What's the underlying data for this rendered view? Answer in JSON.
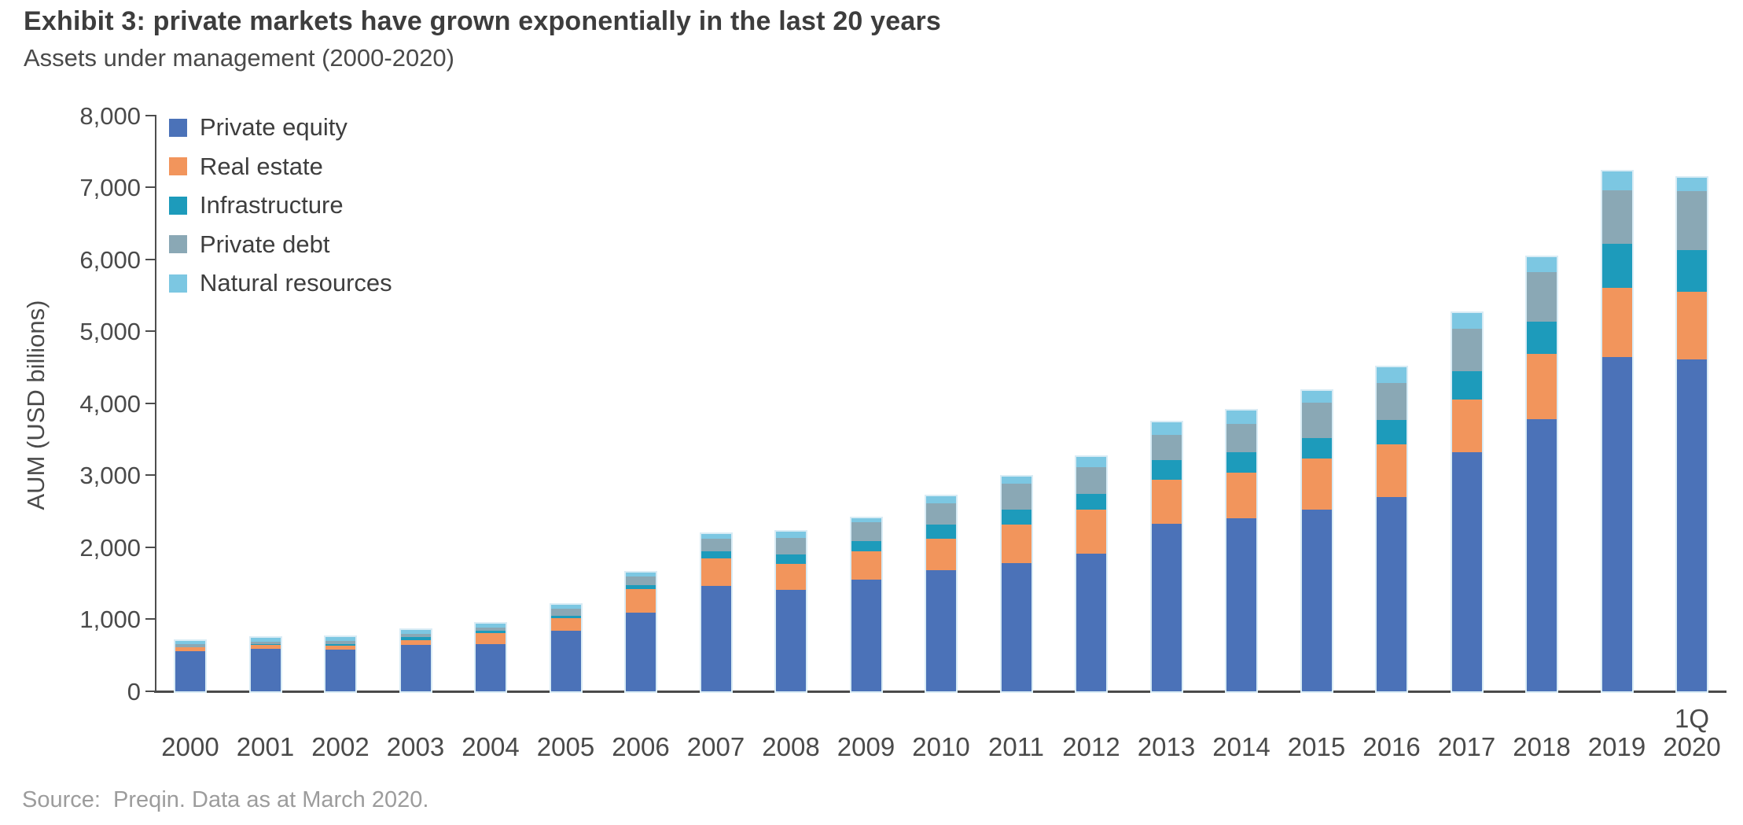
{
  "title": "Exhibit 3: private markets have grown exponentially in the last 20 years",
  "subtitle": "Assets under management (2000-2020)",
  "source": "Source:  Preqin. Data as at March 2020.",
  "chart_data": {
    "type": "bar",
    "stacked": true,
    "title": "Exhibit 3: private markets have grown exponentially in the last 20 years",
    "subtitle": "Assets under management (2000-2020)",
    "xlabel": "",
    "ylabel": "AUM (USD billions)",
    "ylim": [
      0,
      8000
    ],
    "ytick_interval": 1000,
    "ytick_labels": [
      "0",
      "1,000",
      "2,000",
      "3,000",
      "4,000",
      "5,000",
      "6,000",
      "7,000",
      "8,000"
    ],
    "grid": false,
    "legend_position": "top-left",
    "categories": [
      "2000",
      "2001",
      "2002",
      "2003",
      "2004",
      "2005",
      "2006",
      "2007",
      "2008",
      "2009",
      "2010",
      "2011",
      "2012",
      "2013",
      "2014",
      "2015",
      "2016",
      "2017",
      "2018",
      "2019",
      "1Q 2020"
    ],
    "series": [
      {
        "name": "Private equity",
        "color": "#4b72b8",
        "values": [
          565,
          590,
          585,
          645,
          655,
          840,
          1095,
          1460,
          1410,
          1550,
          1690,
          1775,
          1910,
          2330,
          2400,
          2520,
          2700,
          3320,
          3780,
          4640,
          4610
        ]
      },
      {
        "name": "Real estate",
        "color": "#f2955c",
        "values": [
          45,
          55,
          55,
          62,
          160,
          175,
          330,
          390,
          356,
          390,
          434,
          538,
          612,
          610,
          635,
          715,
          730,
          730,
          900,
          965,
          940
        ]
      },
      {
        "name": "Infrastructure",
        "color": "#1d9bbb",
        "values": [
          10,
          11,
          18,
          40,
          34,
          40,
          55,
          90,
          134,
          145,
          193,
          207,
          218,
          270,
          280,
          280,
          330,
          400,
          450,
          605,
          580
        ]
      },
      {
        "name": "Private debt",
        "color": "#8aa8b5",
        "values": [
          38,
          40,
          45,
          45,
          45,
          90,
          117,
          178,
          226,
          264,
          298,
          360,
          371,
          355,
          400,
          495,
          515,
          585,
          690,
          740,
          825
        ]
      },
      {
        "name": "Natural resources",
        "color": "#7cc7e2",
        "values": [
          45,
          50,
          55,
          55,
          50,
          58,
          55,
          66,
          90,
          51,
          98,
          98,
          139,
          175,
          180,
          165,
          220,
          220,
          205,
          265,
          180
        ]
      }
    ],
    "totals": [
      703,
      746,
      758,
      847,
      944,
      1203,
      1652,
      2184,
      2216,
      2400,
      2713,
      2978,
      3250,
      3740,
      3895,
      4175,
      4495,
      5255,
      6025,
      7215,
      7135
    ]
  }
}
